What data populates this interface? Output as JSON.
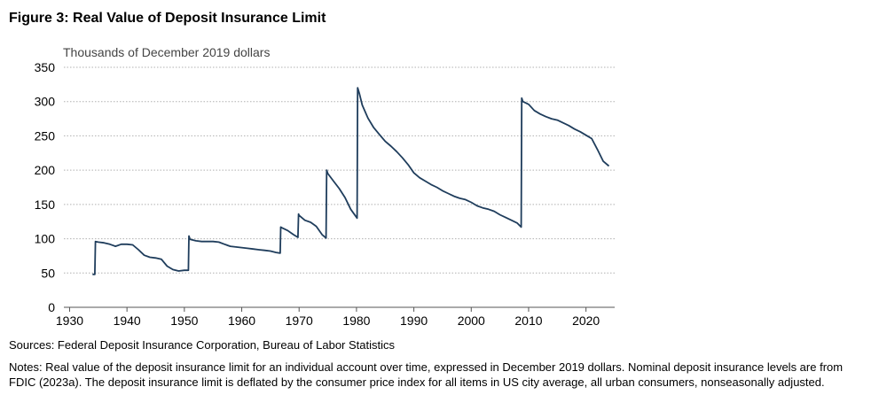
{
  "figure": {
    "title": "Figure 3: Real Value of Deposit Insurance Limit",
    "sources": "Sources: Federal Deposit Insurance Corporation, Bureau of Labor Statistics",
    "notes": "Notes: Real value of the deposit insurance limit for an individual account over time, expressed in December 2019 dollars. Nominal deposit insurance levels are from FDIC (2023a). The deposit insurance limit is deflated by the consumer price index for all items in US city average, all urban consumers, nonseasonally adjusted."
  },
  "chart_data": {
    "type": "line",
    "title": "Figure 3: Real Value of Deposit Insurance Limit",
    "ylabel": "Thousands of December 2019 dollars",
    "xlabel": "",
    "xlim": [
      1929,
      2025
    ],
    "ylim": [
      0,
      350
    ],
    "x_ticks": [
      1930,
      1940,
      1950,
      1960,
      1970,
      1980,
      1990,
      2000,
      2010,
      2020
    ],
    "y_ticks": [
      0,
      50,
      100,
      150,
      200,
      250,
      300,
      350
    ],
    "grid": "horizontal dotted",
    "line_color": "#1f3d5c",
    "series": [
      {
        "x": [
          1934.0,
          1934.4,
          1934.5,
          1935,
          1936,
          1937,
          1938,
          1939,
          1940,
          1941,
          1942,
          1943,
          1944,
          1945,
          1946,
          1947,
          1948,
          1949,
          1950,
          1950.7,
          1950.8,
          1951,
          1952,
          1953,
          1954,
          1955,
          1956,
          1957,
          1958,
          1959,
          1960,
          1961,
          1962,
          1963,
          1964,
          1965,
          1966,
          1966.7,
          1966.8,
          1967,
          1968,
          1969,
          1969.8,
          1969.9,
          1970,
          1971,
          1972,
          1973,
          1974,
          1974.7,
          1974.8,
          1975,
          1976,
          1977,
          1978,
          1979,
          1980.1,
          1980.2,
          1980.5,
          1981,
          1982,
          1983,
          1984,
          1985,
          1986,
          1987,
          1988,
          1989,
          1990,
          1991,
          1992,
          1993,
          1994,
          1995,
          1996,
          1997,
          1998,
          1999,
          2000,
          2001,
          2002,
          2003,
          2004,
          2005,
          2006,
          2007,
          2008,
          2008.7,
          2008.8,
          2009,
          2010,
          2011,
          2012,
          2013,
          2014,
          2015,
          2016,
          2017,
          2018,
          2019,
          2020,
          2021,
          2022,
          2023,
          2024
        ],
        "y": [
          48,
          48,
          96,
          95,
          94,
          92,
          89,
          92,
          92,
          91,
          84,
          76,
          73,
          72,
          70,
          60,
          55,
          53,
          54,
          54,
          104,
          99,
          97,
          96,
          96,
          96,
          95,
          92,
          89,
          88,
          87,
          86,
          85,
          84,
          83,
          82,
          80,
          79,
          117,
          116,
          112,
          106,
          102,
          136,
          134,
          127,
          124,
          118,
          106,
          101,
          200,
          195,
          184,
          173,
          160,
          143,
          130,
          320,
          312,
          295,
          276,
          262,
          252,
          242,
          235,
          227,
          218,
          208,
          196,
          189,
          184,
          179,
          175,
          170,
          166,
          162,
          159,
          157,
          153,
          148,
          145,
          143,
          140,
          135,
          131,
          127,
          123,
          117,
          305,
          300,
          296,
          287,
          282,
          278,
          275,
          273,
          269,
          265,
          260,
          256,
          251,
          246,
          230,
          213,
          206
        ]
      }
    ]
  }
}
